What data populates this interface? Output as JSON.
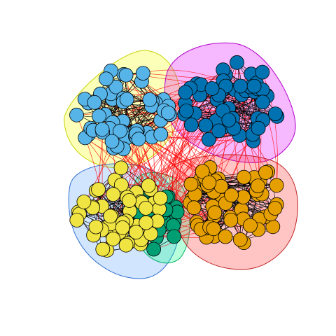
{
  "graph": {
    "type": "network",
    "groups": [
      {
        "name": "",
        "node_count": 55,
        "node_color": "#56B4E9",
        "hull_fill": "#F2FF00",
        "hull_stroke": "#C8D400"
      },
      {
        "name": "",
        "node_count": 55,
        "node_color": "#0072B2",
        "hull_fill": "#E000FF",
        "hull_stroke": "#B000C8"
      },
      {
        "name": "",
        "node_count": 55,
        "node_color": "#F0E442",
        "hull_fill": "#5AA0FF",
        "hull_stroke": "#2F6FD0"
      },
      {
        "name": "",
        "node_count": 20,
        "node_color": "#009E73",
        "hull_fill": "#00FF80",
        "hull_stroke": "#00B060"
      },
      {
        "name": "",
        "node_count": 60,
        "node_color": "#E69F00",
        "hull_fill": "#FF3030",
        "hull_stroke": "#C02020"
      }
    ],
    "colors": {
      "intra_edge": "#000000",
      "inter_edge": "#FF0000",
      "node_stroke": "#000000",
      "background": "#FFFFFF"
    }
  }
}
